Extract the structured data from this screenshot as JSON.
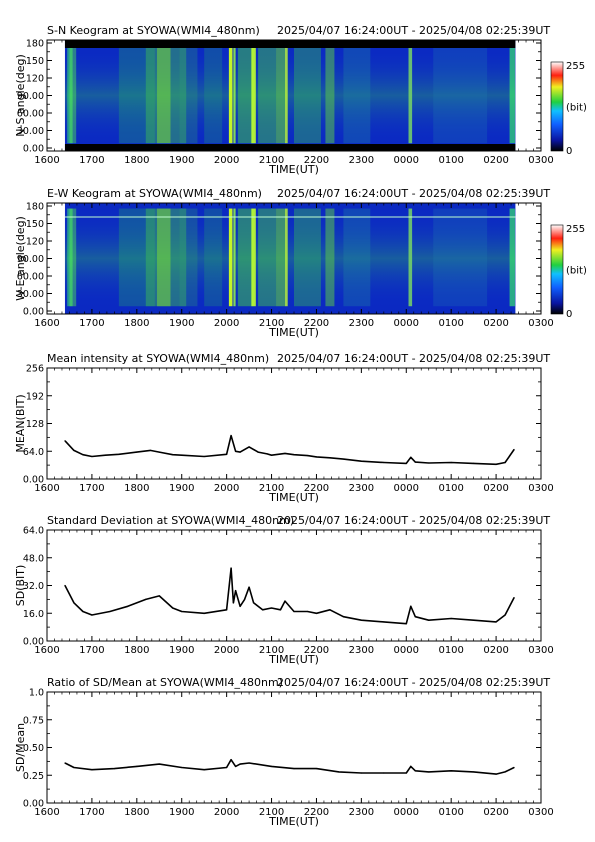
{
  "x_ticks": [
    "1600",
    "1700",
    "1800",
    "1900",
    "2000",
    "2100",
    "2200",
    "2300",
    "0000",
    "0100",
    "0200",
    "0300"
  ],
  "time_range": "2025/04/07 16:24:00UT - 2025/04/08 02:25:39UT",
  "chart_data": [
    {
      "type": "heatmap",
      "title": "S-N Keogram at SYOWA(WMI4_480nm)",
      "xlabel": "TIME(UT)",
      "ylabel": "N-S angle(deg)",
      "yticks": [
        "0.00",
        "30.00",
        "60.00",
        "90.00",
        "120",
        "150",
        "180"
      ],
      "ylim": [
        0,
        180
      ],
      "colorbar": {
        "max_label": "255",
        "unit_label": "(bit)",
        "min_label": "0",
        "range": [
          0,
          255
        ]
      },
      "data_xrange": [
        "1624",
        "0225"
      ],
      "bright_bands_time": [
        1800,
        1850,
        2010,
        2020,
        2050,
        2100,
        2125,
        2215,
        2400
      ],
      "colors": {
        "low": "#0a25c8",
        "mid": "#22b040",
        "high": "#b8ff00"
      }
    },
    {
      "type": "heatmap",
      "title": "E-W Keogram at SYOWA(WMI4_480nm)",
      "xlabel": "TIME(UT)",
      "ylabel": "W-E angle(deg)",
      "yticks": [
        "0.00",
        "30.00",
        "60.00",
        "90.00",
        "120",
        "150",
        "180"
      ],
      "ylim": [
        0,
        180
      ],
      "colorbar": {
        "max_label": "255",
        "unit_label": "(bit)",
        "min_label": "0",
        "range": [
          0,
          255
        ]
      },
      "data_xrange": [
        "1624",
        "0225"
      ]
    },
    {
      "type": "line",
      "title": "Mean intensity at SYOWA(WMI4_480nm)",
      "xlabel": "TIME(UT)",
      "ylabel": "MEAN(BIT)",
      "yticks": [
        "0.00",
        "64.0",
        "128",
        "192",
        "256"
      ],
      "ylim": [
        0,
        256
      ],
      "x": [
        16.4,
        16.6,
        16.8,
        17.0,
        17.3,
        17.6,
        18.0,
        18.3,
        18.5,
        18.8,
        19.0,
        19.5,
        20.0,
        20.1,
        20.2,
        20.3,
        20.5,
        20.7,
        20.9,
        21.0,
        21.3,
        21.5,
        21.8,
        22.0,
        22.3,
        22.6,
        23.0,
        23.5,
        24.0,
        24.1,
        24.2,
        24.5,
        25.0,
        25.5,
        26.0,
        26.2,
        26.4
      ],
      "y": [
        88,
        66,
        56,
        52,
        55,
        57,
        62,
        66,
        62,
        56,
        55,
        52,
        57,
        100,
        64,
        62,
        74,
        62,
        58,
        55,
        59,
        56,
        54,
        51,
        49,
        46,
        41,
        38,
        36,
        50,
        39,
        37,
        38,
        36,
        34,
        38,
        68
      ]
    },
    {
      "type": "line",
      "title": "Standard Deviation at SYOWA(WMI4_480nm)",
      "xlabel": "TIME(UT)",
      "ylabel": "SD(BIT)",
      "yticks": [
        "0.00",
        "16.0",
        "32.0",
        "48.0",
        "64.0"
      ],
      "ylim": [
        0,
        64
      ],
      "x": [
        16.4,
        16.6,
        16.8,
        17.0,
        17.4,
        17.8,
        18.2,
        18.5,
        18.8,
        19.0,
        19.5,
        20.0,
        20.1,
        20.15,
        20.2,
        20.3,
        20.4,
        20.5,
        20.6,
        20.8,
        21.0,
        21.2,
        21.3,
        21.5,
        21.8,
        22.0,
        22.3,
        22.6,
        23.0,
        23.5,
        24.0,
        24.1,
        24.2,
        24.5,
        25.0,
        25.5,
        26.0,
        26.2,
        26.4
      ],
      "y": [
        32,
        22,
        17,
        15,
        17,
        20,
        24,
        26,
        19,
        17,
        16,
        18,
        42,
        22,
        29,
        20,
        24,
        31,
        22,
        18,
        19,
        18,
        23,
        17,
        17,
        16,
        18,
        14,
        12,
        11,
        10,
        20,
        14,
        12,
        13,
        12,
        11,
        15,
        25
      ]
    },
    {
      "type": "line",
      "title": "Ratio of SD/Mean at SYOWA(WMI4_480nm)",
      "xlabel": "TIME(UT)",
      "ylabel": "SD/Mean",
      "yticks": [
        "0.00",
        "0.25",
        "0.50",
        "0.75",
        "1.0"
      ],
      "ylim": [
        0,
        1.0
      ],
      "x": [
        16.4,
        16.6,
        17.0,
        17.5,
        18.0,
        18.5,
        19.0,
        19.5,
        20.0,
        20.1,
        20.2,
        20.3,
        20.5,
        21.0,
        21.5,
        22.0,
        22.5,
        23.0,
        23.5,
        24.0,
        24.1,
        24.2,
        24.5,
        25.0,
        25.5,
        26.0,
        26.2,
        26.4
      ],
      "y": [
        0.36,
        0.32,
        0.3,
        0.31,
        0.33,
        0.35,
        0.32,
        0.3,
        0.32,
        0.39,
        0.33,
        0.35,
        0.36,
        0.33,
        0.31,
        0.31,
        0.28,
        0.27,
        0.27,
        0.27,
        0.33,
        0.29,
        0.28,
        0.29,
        0.28,
        0.26,
        0.28,
        0.32
      ]
    }
  ]
}
